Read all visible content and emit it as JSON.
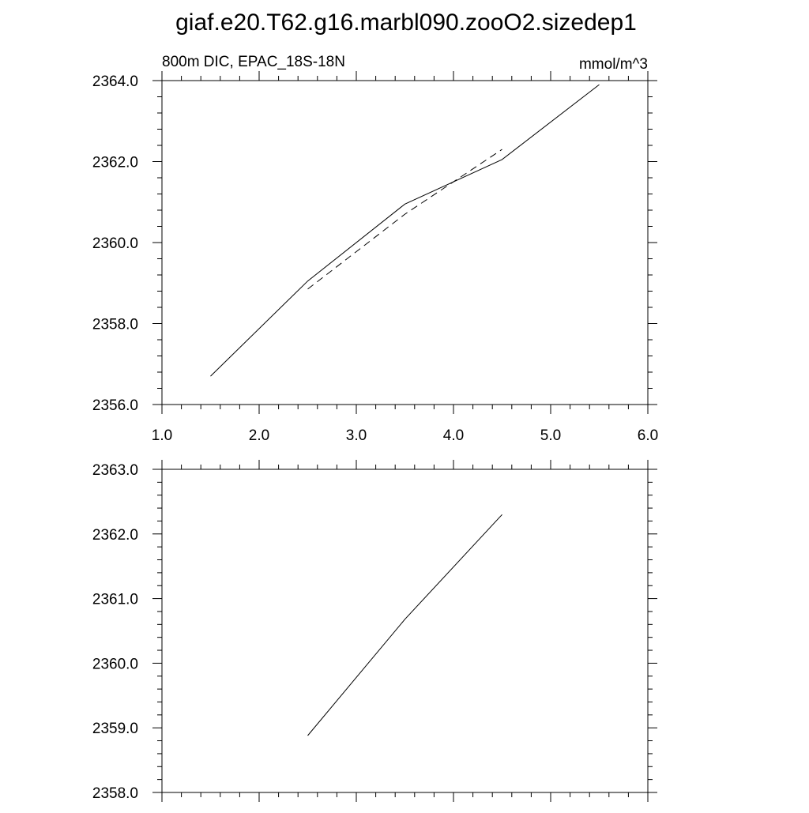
{
  "main_title": "giaf.e20.T62.g16.marbl090.zooO2.sizedep1",
  "line_color": "#000000",
  "chart_data": [
    {
      "type": "line",
      "left_string": "800m DIC, EPAC_18S-18N",
      "right_string": "mmol/m^3",
      "xlim": [
        1.0,
        6.0
      ],
      "ylim": [
        2356.0,
        2364.0
      ],
      "x_ticks": [
        1.0,
        2.0,
        3.0,
        4.0,
        5.0,
        6.0
      ],
      "x_tick_labels": [
        "1.0",
        "2.0",
        "3.0",
        "4.0",
        "5.0",
        "6.0"
      ],
      "y_ticks": [
        2356.0,
        2358.0,
        2360.0,
        2362.0,
        2364.0
      ],
      "y_tick_labels": [
        "2356.0",
        "2358.0",
        "2360.0",
        "2362.0",
        "2364.0"
      ],
      "grid": false,
      "series": [
        {
          "style": "solid",
          "x": [
            1.5,
            2.5,
            3.5,
            4.5,
            5.5
          ],
          "y": [
            2356.7,
            2359.05,
            2360.95,
            2362.05,
            2363.9
          ]
        },
        {
          "style": "dashed",
          "x": [
            2.5,
            3.5,
            4.5
          ],
          "y": [
            2358.85,
            2360.7,
            2362.3
          ]
        }
      ]
    },
    {
      "type": "line",
      "xlim": [
        1.0,
        6.0
      ],
      "ylim": [
        2358.0,
        2363.0
      ],
      "x_ticks": [
        1.0,
        2.0,
        3.0,
        4.0,
        5.0,
        6.0
      ],
      "y_ticks": [
        2358.0,
        2359.0,
        2360.0,
        2361.0,
        2362.0,
        2363.0
      ],
      "y_tick_labels": [
        "2358.0",
        "2359.0",
        "2360.0",
        "2361.0",
        "2362.0",
        "2363.0"
      ],
      "grid": false,
      "series": [
        {
          "style": "solid",
          "x": [
            2.5,
            3.5,
            4.5
          ],
          "y": [
            2358.88,
            2360.68,
            2362.3
          ]
        }
      ]
    }
  ]
}
